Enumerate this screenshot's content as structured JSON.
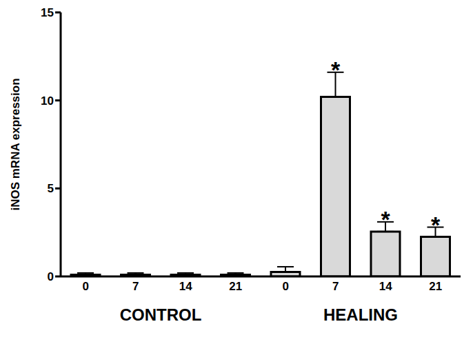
{
  "chart_data": {
    "type": "bar",
    "y_label": "iNOS mRNA expression",
    "categories": [
      "0",
      "7",
      "14",
      "21",
      "0",
      "7",
      "14",
      "21"
    ],
    "groups": [
      "CONTROL",
      "HEALING"
    ],
    "values": [
      0.1,
      0.1,
      0.1,
      0.1,
      0.25,
      10.2,
      2.55,
      2.25
    ],
    "errors": [
      0.1,
      0.1,
      0.1,
      0.1,
      0.3,
      1.4,
      0.55,
      0.55
    ],
    "annotations": [
      null,
      null,
      null,
      null,
      null,
      "*",
      "*",
      "*"
    ],
    "color": "#d9d9d9",
    "ylim": [
      0,
      15
    ],
    "yticks": [
      0,
      5,
      10,
      15
    ],
    "grid": false
  }
}
